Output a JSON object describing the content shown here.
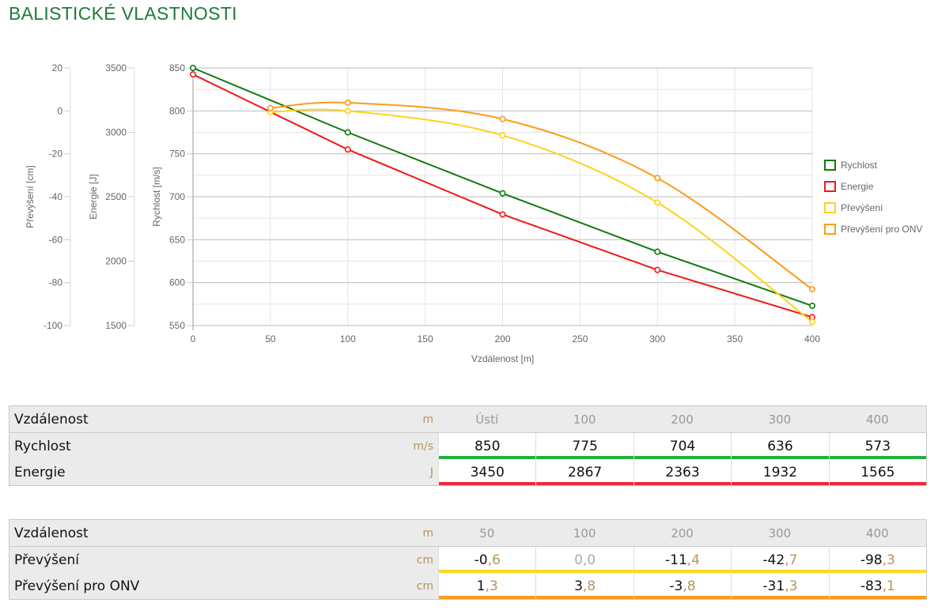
{
  "title": "BALISTICKÉ VLASTNOSTI",
  "colors": {
    "speed": "#0f7a0f",
    "energy": "#f01818",
    "drop": "#ffd21a",
    "drop_onv": "#ff9a1a",
    "bar_speed": "#22b03c",
    "bar_energy": "#f0283c",
    "bar_drop": "#ffd81a",
    "bar_onv": "#ff9a1a"
  },
  "chart_data": {
    "type": "line",
    "xlabel": "Vzdálenost [m]",
    "xlim": [
      0,
      400
    ],
    "xticks": [
      0,
      50,
      100,
      150,
      200,
      250,
      300,
      350,
      400
    ],
    "axes": [
      {
        "label": "Převýšení [cm]",
        "lim": [
          -100,
          20
        ],
        "ticks": [
          20,
          0,
          -20,
          -40,
          -60,
          -80,
          -100
        ]
      },
      {
        "label": "Energie [J]",
        "lim": [
          1500,
          3500
        ],
        "ticks": [
          3500,
          3000,
          2500,
          2000,
          1500
        ]
      },
      {
        "label": "Rychlost [m/s]",
        "lim": [
          550,
          850
        ],
        "ticks": [
          850,
          800,
          750,
          700,
          650,
          600,
          550
        ]
      }
    ],
    "series": [
      {
        "name": "Rychlost",
        "axis": 2,
        "color": "#0f7a0f",
        "x": [
          0,
          100,
          200,
          300,
          400
        ],
        "y": [
          850,
          775,
          704,
          636,
          573
        ],
        "smooth": false
      },
      {
        "name": "Energie",
        "axis": 1,
        "color": "#f01818",
        "x": [
          0,
          100,
          200,
          300,
          400
        ],
        "y": [
          3450,
          2867,
          2363,
          1932,
          1565
        ],
        "smooth": false
      },
      {
        "name": "Převýšení",
        "axis": 0,
        "color": "#ffd21a",
        "x": [
          50,
          100,
          200,
          300,
          400
        ],
        "y": [
          -0.6,
          0,
          -11.4,
          -42.7,
          -98.3
        ],
        "smooth": true
      },
      {
        "name": "Převýšení pro ONV",
        "axis": 0,
        "color": "#ff9a1a",
        "x": [
          50,
          100,
          200,
          300,
          400
        ],
        "y": [
          1.3,
          3.8,
          -3.8,
          -31.3,
          -83.1
        ],
        "smooth": true
      }
    ],
    "legend": "right"
  },
  "table1": {
    "header": {
      "label": "Vzdálenost",
      "unit": "m",
      "cols": [
        "Ústí",
        "100",
        "200",
        "300",
        "400"
      ]
    },
    "rows": [
      {
        "label": "Rychlost",
        "unit": "m/s",
        "values": [
          "850",
          "775",
          "704",
          "636",
          "573"
        ],
        "bar": "bar_speed"
      },
      {
        "label": "Energie",
        "unit": "J",
        "values": [
          "3450",
          "2867",
          "2363",
          "1932",
          "1565"
        ],
        "bar": "bar_energy"
      }
    ]
  },
  "table2": {
    "header": {
      "label": "Vzdálenost",
      "unit": "m",
      "cols": [
        "50",
        "100",
        "200",
        "300",
        "400"
      ]
    },
    "rows": [
      {
        "label": "Převýšení",
        "unit": "cm",
        "values": [
          "-0,6",
          "0,0",
          "-11,4",
          "-42,7",
          "-98,3"
        ],
        "bar": "bar_drop"
      },
      {
        "label": "Převýšení pro ONV",
        "unit": "cm",
        "values": [
          "1,3",
          "3,8",
          "-3,8",
          "-31,3",
          "-83,1"
        ],
        "bar": "bar_onv"
      }
    ]
  }
}
